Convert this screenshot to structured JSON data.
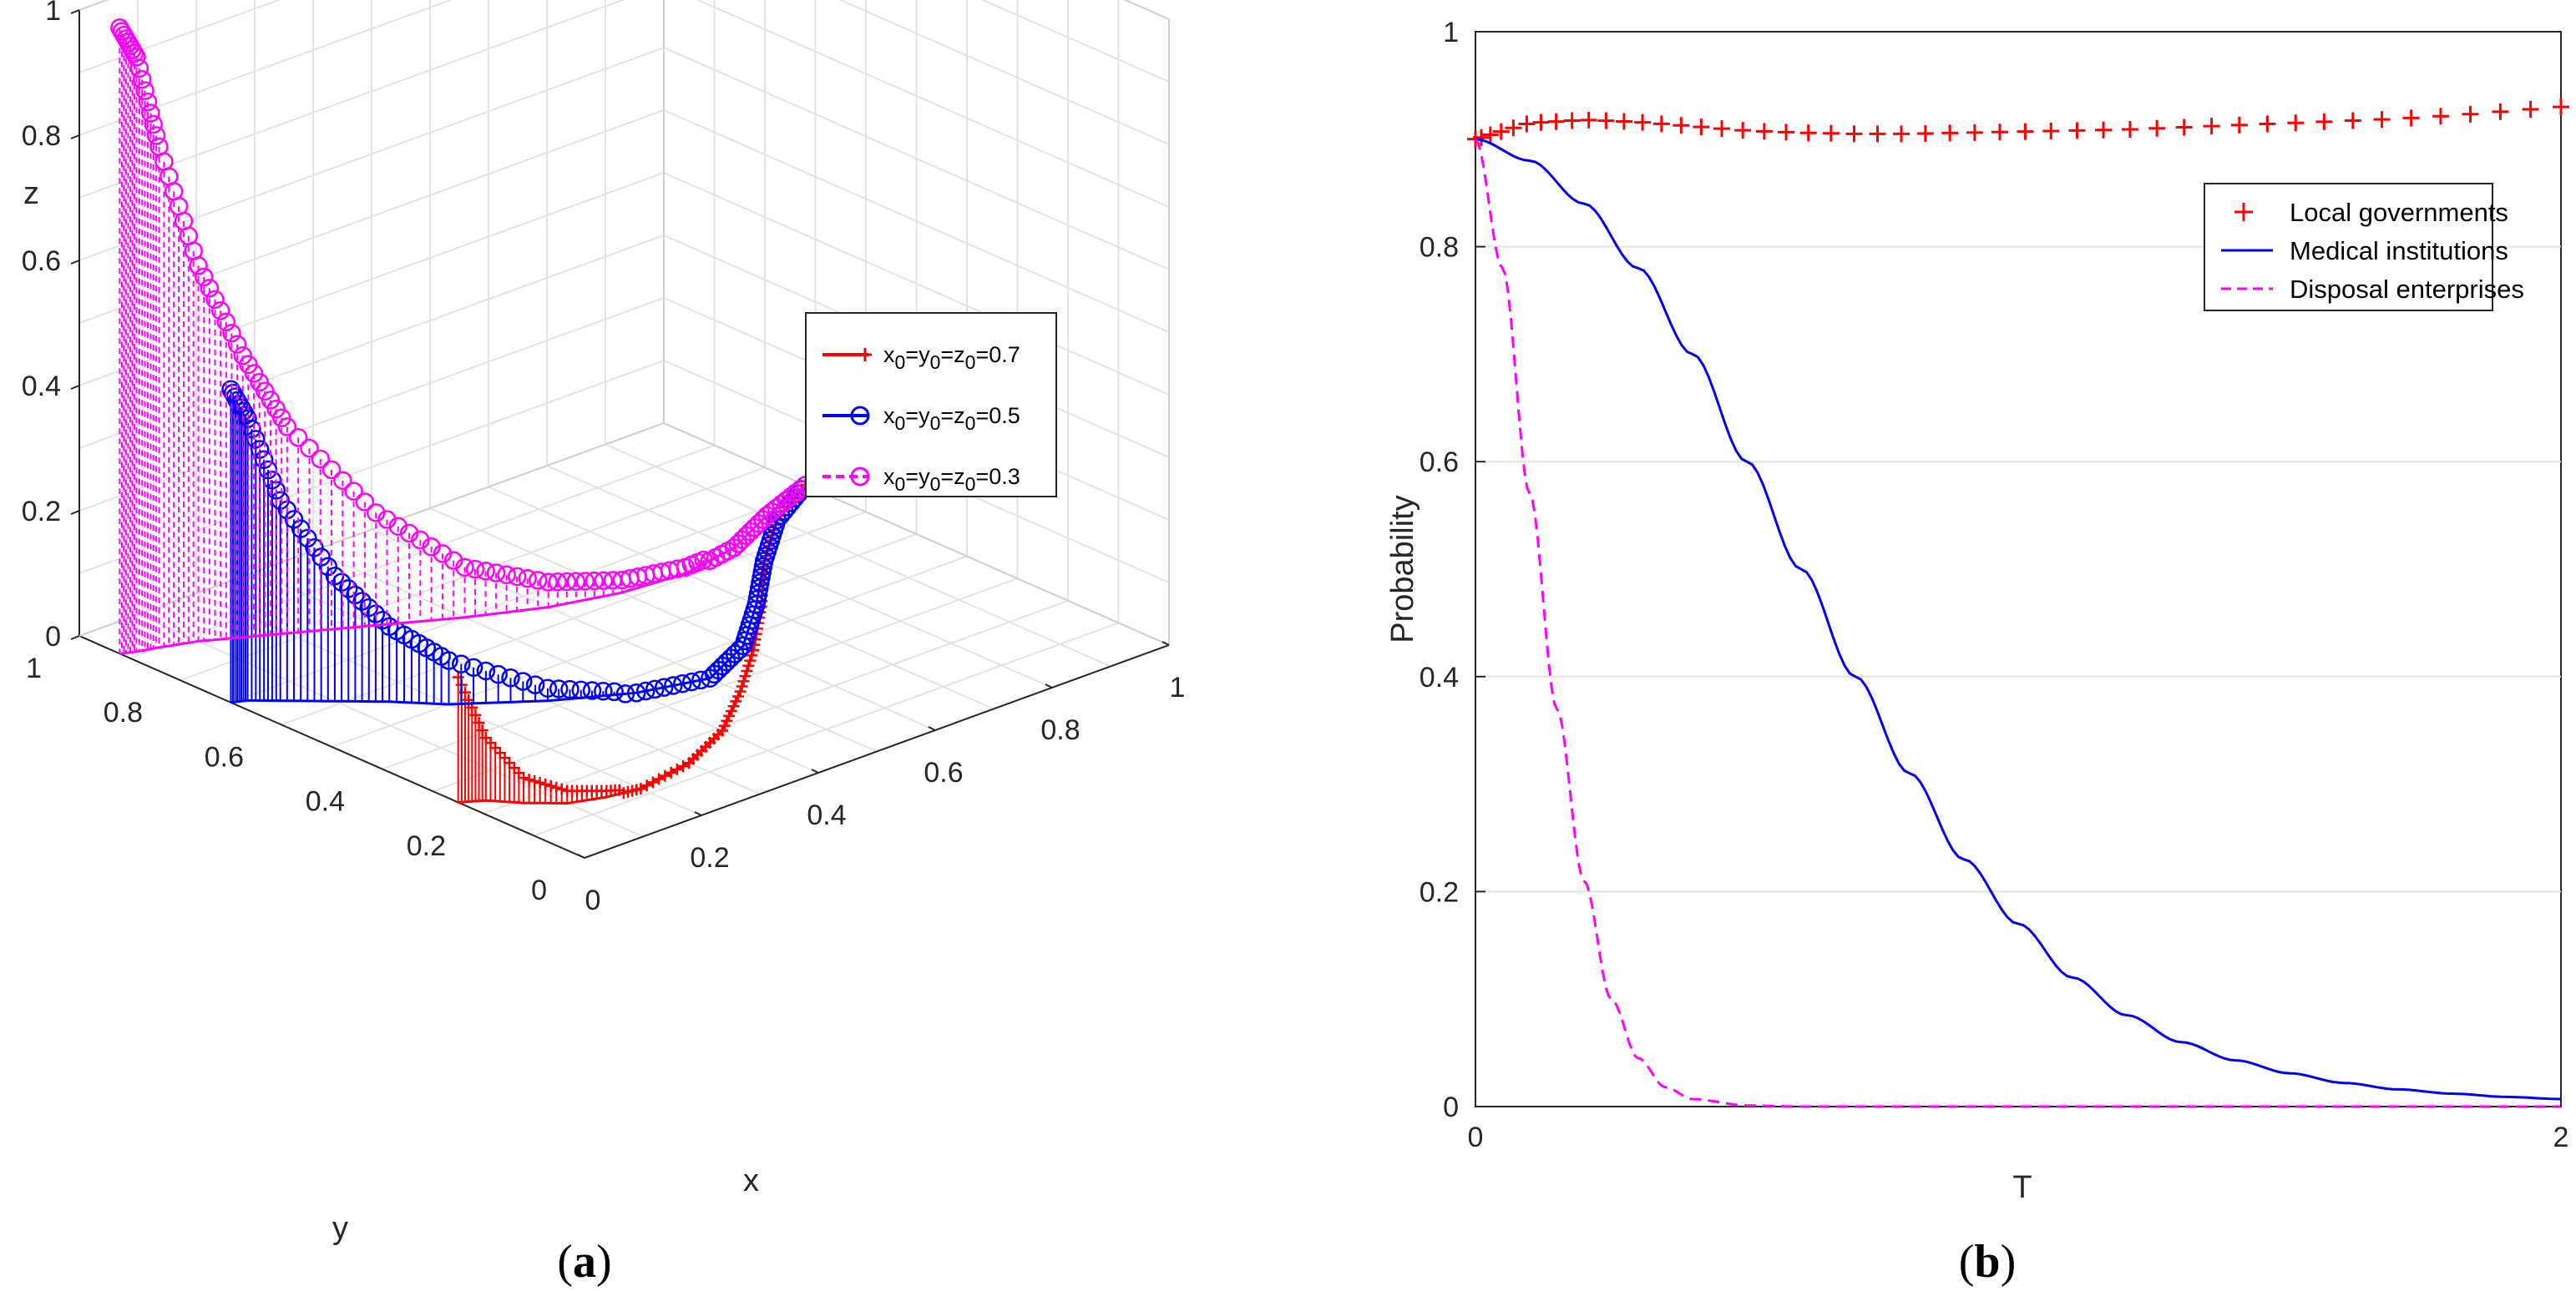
{
  "chart_data": [
    {
      "type": "line",
      "panel_label": "(a)",
      "projection": "3d",
      "xlabel": "x",
      "ylabel": "y",
      "zlabel": "z",
      "x_ticks": [
        "0",
        "0.2",
        "0.4",
        "0.6",
        "0.8",
        "1"
      ],
      "y_ticks": [
        "0",
        "0.2",
        "0.4",
        "0.6",
        "0.8",
        "1"
      ],
      "z_ticks": [
        "0",
        "0.2",
        "0.4",
        "0.6",
        "0.8",
        "1"
      ],
      "xlim": [
        0,
        1
      ],
      "ylim": [
        0,
        1
      ],
      "zlim": [
        0,
        1
      ],
      "grid": true,
      "legend_position": "top-right",
      "series": [
        {
          "name": "x0=y0=z0=0.7",
          "color": "#ff0000",
          "marker": "plus",
          "linestyle": "solid",
          "points": [
            [
              0,
              0.25,
              0.2
            ],
            [
              0.03,
              0.23,
              0.1
            ],
            [
              0.06,
              0.19,
              0.04
            ],
            [
              0.1,
              0.15,
              0.02
            ],
            [
              0.15,
              0.13,
              0.01
            ],
            [
              0.2,
              0.12,
              0
            ],
            [
              0.3,
              0.14,
              0
            ],
            [
              0.4,
              0.19,
              0
            ],
            [
              0.5,
              0.27,
              0
            ],
            [
              0.6,
              0.36,
              0
            ],
            [
              0.7,
              0.46,
              0
            ],
            [
              0.8,
              0.57,
              0
            ],
            [
              0.9,
              0.66,
              0
            ],
            [
              1.0,
              0.72,
              0
            ]
          ]
        },
        {
          "name": "x0=y0=z0=0.5",
          "color": "#0000ff",
          "marker": "circle",
          "linestyle": "solid",
          "points": [
            [
              0,
              0.7,
              0.5
            ],
            [
              0.02,
              0.69,
              0.45
            ],
            [
              0.05,
              0.66,
              0.32
            ],
            [
              0.1,
              0.61,
              0.2
            ],
            [
              0.15,
              0.56,
              0.12
            ],
            [
              0.2,
              0.5,
              0.07
            ],
            [
              0.3,
              0.42,
              0.02
            ],
            [
              0.4,
              0.36,
              0
            ],
            [
              0.5,
              0.33,
              0
            ],
            [
              0.6,
              0.38,
              0
            ],
            [
              0.7,
              0.47,
              0
            ],
            [
              0.8,
              0.57,
              0
            ],
            [
              0.9,
              0.66,
              0
            ],
            [
              1.0,
              0.72,
              0
            ]
          ]
        },
        {
          "name": "x0=y0=z0=0.3",
          "color": "#ff00ff",
          "marker": "circle",
          "linestyle": "dashed",
          "points": [
            [
              0,
              0.92,
              1.0
            ],
            [
              0.02,
              0.91,
              0.95
            ],
            [
              0.05,
              0.9,
              0.8
            ],
            [
              0.1,
              0.88,
              0.6
            ],
            [
              0.15,
              0.85,
              0.45
            ],
            [
              0.2,
              0.82,
              0.33
            ],
            [
              0.3,
              0.76,
              0.18
            ],
            [
              0.4,
              0.7,
              0.08
            ],
            [
              0.5,
              0.65,
              0.04
            ],
            [
              0.6,
              0.62,
              0.02
            ],
            [
              0.7,
              0.61,
              0.01
            ],
            [
              0.8,
              0.63,
              0
            ],
            [
              0.9,
              0.68,
              0
            ],
            [
              1.0,
              0.72,
              0
            ]
          ]
        }
      ]
    },
    {
      "type": "line",
      "panel_label": "(b)",
      "xlabel": "T",
      "ylabel": "Probability",
      "x_ticks": [
        "0",
        "2"
      ],
      "y_ticks": [
        "0",
        "0.2",
        "0.4",
        "0.6",
        "0.8",
        "1"
      ],
      "xlim": [
        0,
        2
      ],
      "ylim": [
        0,
        1
      ],
      "grid": true,
      "legend_position": "top-right",
      "series": [
        {
          "name": "Local governments",
          "color": "#ff0000",
          "marker": "plus",
          "linestyle": "none",
          "x": [
            0,
            0.1,
            0.2,
            0.3,
            0.4,
            0.5,
            0.6,
            0.7,
            0.8,
            0.9,
            1.0,
            1.1,
            1.2,
            1.3,
            1.4,
            1.5,
            1.6,
            1.7,
            1.8,
            1.9,
            2.0
          ],
          "y": [
            0.9,
            0.915,
            0.918,
            0.916,
            0.912,
            0.908,
            0.906,
            0.905,
            0.905,
            0.906,
            0.907,
            0.908,
            0.909,
            0.911,
            0.913,
            0.915,
            0.917,
            0.919,
            0.922,
            0.926,
            0.93
          ]
        },
        {
          "name": "Medical institutions",
          "color": "#0000ff",
          "marker": "none",
          "linestyle": "solid",
          "x": [
            0,
            0.1,
            0.2,
            0.3,
            0.4,
            0.5,
            0.6,
            0.7,
            0.8,
            0.9,
            1.0,
            1.1,
            1.2,
            1.3,
            1.4,
            1.5,
            1.6,
            1.7,
            1.8,
            1.9,
            2.0
          ],
          "y": [
            0.9,
            0.88,
            0.84,
            0.78,
            0.7,
            0.6,
            0.5,
            0.4,
            0.31,
            0.23,
            0.17,
            0.12,
            0.085,
            0.06,
            0.043,
            0.031,
            0.022,
            0.016,
            0.012,
            0.009,
            0.007
          ]
        },
        {
          "name": "Disposal enterprises",
          "color": "#ff00ff",
          "marker": "none",
          "linestyle": "dashed",
          "x": [
            0,
            0.05,
            0.1,
            0.15,
            0.2,
            0.25,
            0.3,
            0.35,
            0.4,
            0.5,
            0.6,
            0.8,
            1.0,
            1.5,
            2.0
          ],
          "y": [
            0.9,
            0.78,
            0.57,
            0.37,
            0.21,
            0.1,
            0.045,
            0.018,
            0.007,
            0.001,
            0,
            0,
            0,
            0,
            0
          ]
        }
      ]
    }
  ]
}
